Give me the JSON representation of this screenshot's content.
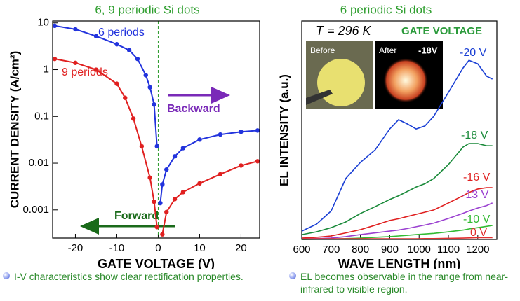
{
  "chart_data": [
    {
      "type": "line",
      "title": "6, 9 periodic Si dots",
      "x_label": "GATE VOLTAGE (V)",
      "y_label": "CURRENT DENSITY (A/cm²)",
      "xlim": [
        -25.5,
        24.5
      ],
      "xticks": [
        -20,
        -10,
        0,
        10,
        20
      ],
      "ylim": [
        0.00025,
        11
      ],
      "yticks": [
        10,
        1,
        0.1,
        0.01,
        0.001
      ],
      "ylog": true,
      "markers": true,
      "reference_line_x": 0,
      "series": [
        {
          "name": "6 periods",
          "color": "#2233dd",
          "x": [
            -25,
            -20,
            -15,
            -10,
            -7,
            -5,
            -3,
            -2,
            -1,
            -0.3,
            0,
            0.5,
            1,
            2,
            4,
            6,
            10,
            15,
            20,
            24
          ],
          "values": [
            8.7,
            7.3,
            5.2,
            3.5,
            2.6,
            1.7,
            0.76,
            0.42,
            0.18,
            0.023,
            null,
            0.0014,
            0.0035,
            0.0073,
            0.014,
            0.021,
            0.032,
            0.041,
            0.047,
            0.05
          ]
        },
        {
          "name": "9 periods",
          "color": "#e02020",
          "x": [
            -25,
            -20,
            -15,
            -10,
            -8,
            -6,
            -4,
            -2,
            -1,
            -0.3,
            0,
            1,
            2,
            4,
            6,
            10,
            15,
            20,
            24
          ],
          "values": [
            1.7,
            1.4,
            1.0,
            0.5,
            0.25,
            0.09,
            0.023,
            0.0049,
            0.0015,
            0.00043,
            null,
            0.0003,
            0.0009,
            0.0017,
            0.0024,
            0.0037,
            0.0058,
            0.0089,
            0.011
          ]
        }
      ],
      "annotations": [
        "Backward",
        "Forward"
      ]
    },
    {
      "type": "line",
      "title": "6 periodic Si dots",
      "x_label": "WAVE LENGTH (nm)",
      "y_label": "EL INTENSITY (a.u.)",
      "xlim": [
        600,
        1265
      ],
      "xticks": [
        600,
        700,
        800,
        900,
        1000,
        1100,
        1200
      ],
      "ylim": [
        0,
        100
      ],
      "markers": false,
      "series": [
        {
          "name": "-20 V",
          "color": "#1a3fd4",
          "x": [
            600,
            650,
            700,
            750,
            800,
            850,
            900,
            930,
            960,
            990,
            1020,
            1050,
            1100,
            1150,
            1170,
            1200,
            1230,
            1250
          ],
          "values": [
            3.8,
            7,
            13,
            27.9,
            35.3,
            41,
            50.6,
            54.8,
            52.9,
            50.6,
            52,
            56.4,
            67.3,
            78.5,
            82,
            80.4,
            74.7,
            73.4
          ]
        },
        {
          "name": "-18 V",
          "color": "#1a8a3a",
          "x": [
            600,
            650,
            700,
            750,
            800,
            850,
            900,
            930,
            960,
            990,
            1020,
            1050,
            1100,
            1150,
            1170,
            1200,
            1230,
            1250
          ],
          "values": [
            2.2,
            3.5,
            5.4,
            8,
            11.9,
            15,
            18.3,
            20,
            22,
            24,
            25.5,
            27.9,
            34.3,
            42.3,
            43.9,
            43.9,
            42.9,
            42.9
          ]
        },
        {
          "name": "-16 V",
          "color": "#e02020",
          "x": [
            600,
            650,
            700,
            750,
            800,
            850,
            900,
            930,
            960,
            990,
            1020,
            1050,
            1100,
            1150,
            1170,
            1200,
            1230,
            1250
          ],
          "values": [
            0.6,
            1,
            1.6,
            3,
            4.5,
            6.5,
            8.7,
            9.5,
            10.5,
            11.5,
            12.5,
            13.5,
            16.7,
            20,
            21.5,
            23.1,
            23.7,
            23.7
          ]
        },
        {
          "name": "-13 V",
          "color": "#9a40d0",
          "x": [
            600,
            650,
            700,
            750,
            800,
            850,
            900,
            930,
            960,
            990,
            1020,
            1050,
            1100,
            1150,
            1170,
            1200,
            1230,
            1250
          ],
          "values": [
            0.3,
            0.4,
            0.6,
            1.3,
            2.2,
            3,
            3.8,
            4.3,
            5,
            5.8,
            6.6,
            7.5,
            9.6,
            12,
            13,
            14.4,
            15.5,
            16.7
          ]
        },
        {
          "name": "-10 V",
          "color": "#33bb33",
          "x": [
            600,
            650,
            700,
            750,
            800,
            850,
            900,
            930,
            960,
            990,
            1020,
            1050,
            1100,
            1150,
            1170,
            1200,
            1230,
            1250
          ],
          "values": [
            0,
            0.1,
            0.2,
            0.4,
            0.6,
            1,
            1.3,
            1.6,
            1.9,
            2.2,
            2.5,
            2.8,
            3.5,
            4.3,
            4.8,
            5.4,
            6,
            6.4
          ]
        },
        {
          "name": "0 V",
          "color": "#e03030",
          "x": [
            600,
            650,
            700,
            750,
            800,
            850,
            900,
            930,
            960,
            990,
            1020,
            1050,
            1100,
            1150,
            1170,
            1200,
            1230,
            1250
          ],
          "values": [
            0.3,
            0.3,
            0.3,
            0.3,
            0.3,
            0.3,
            0.3,
            0.3,
            0.3,
            0.3,
            0.4,
            0.4,
            0.5,
            0.6,
            0.7,
            0.8,
            0.8,
            0.8
          ]
        }
      ],
      "annotations": [
        "T = 296 K",
        "GATE VOLTAGE",
        "Before",
        "After",
        "-18V"
      ]
    }
  ],
  "captions": [
    "I-V characteristics show clear rectification properties.",
    "EL becomes observable in the range from near-infrared to visible region."
  ]
}
